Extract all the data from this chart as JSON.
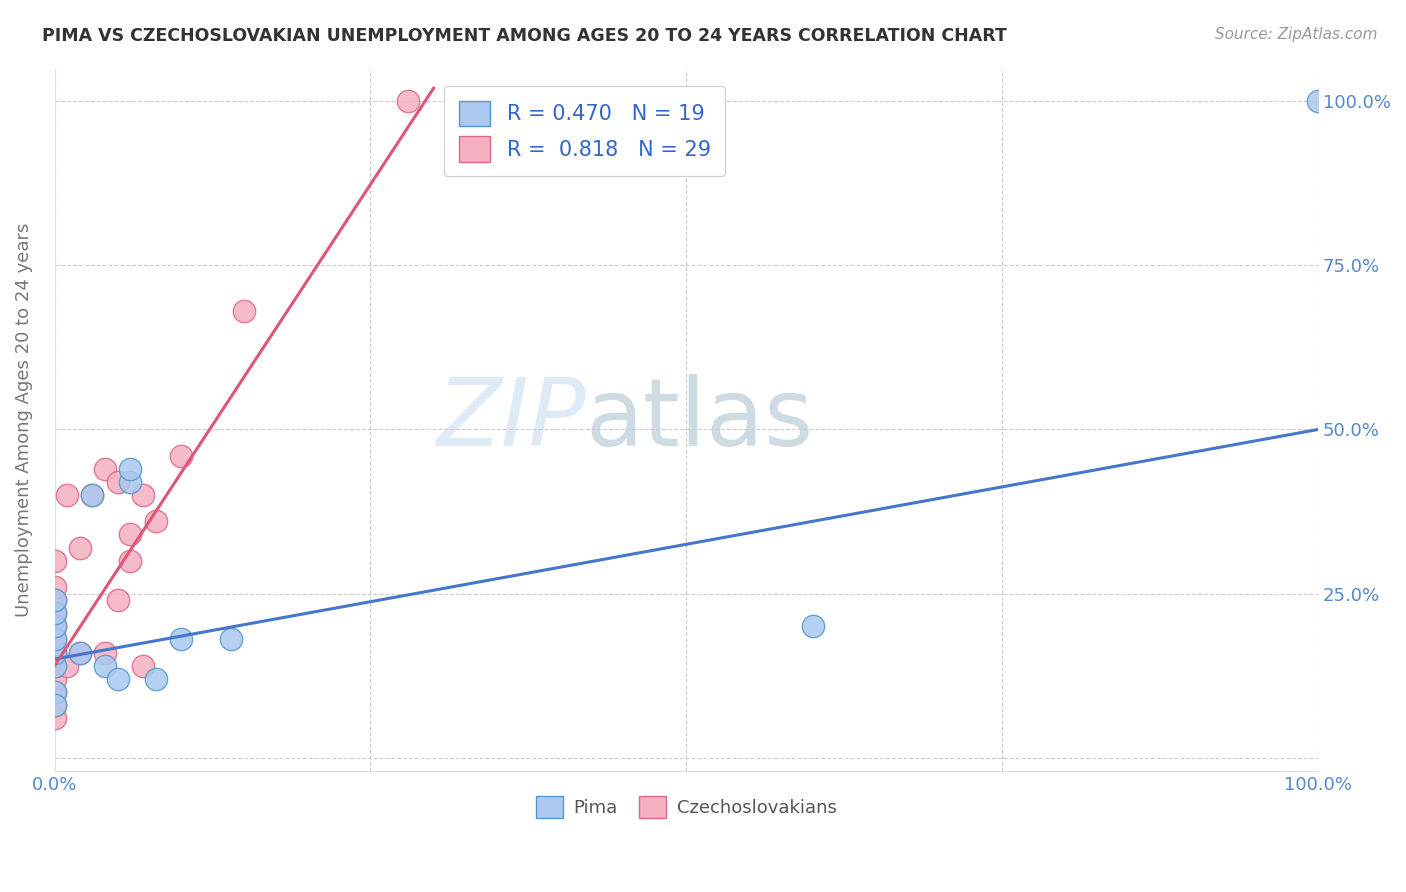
{
  "title": "PIMA VS CZECHOSLOVAKIAN UNEMPLOYMENT AMONG AGES 20 TO 24 YEARS CORRELATION CHART",
  "source": "Source: ZipAtlas.com",
  "ylabel": "Unemployment Among Ages 20 to 24 years",
  "watermark_zip": "ZIP",
  "watermark_atlas": "atlas",
  "xlim": [
    0,
    1.0
  ],
  "ylim": [
    -0.02,
    1.05
  ],
  "xticks": [
    0.0,
    0.25,
    0.5,
    0.75,
    1.0
  ],
  "xticklabels": [
    "0.0%",
    "",
    "",
    "",
    "100.0%"
  ],
  "yticks": [
    0.0,
    0.25,
    0.5,
    0.75,
    1.0
  ],
  "right_yticklabels": [
    "",
    "25.0%",
    "50.0%",
    "75.0%",
    "100.0%"
  ],
  "pima_color": "#aac8f0",
  "pima_edge_color": "#5599cc",
  "czech_color": "#f4b0c0",
  "czech_edge_color": "#dd6688",
  "pima_R": 0.47,
  "pima_N": 19,
  "czech_R": 0.818,
  "czech_N": 29,
  "pima_line_color": "#4477cc",
  "czech_line_color": "#dd5577",
  "legend_color": "#3366cc",
  "pima_points_x": [
    0.0,
    0.0,
    0.0,
    0.0,
    0.0,
    0.0,
    0.0,
    0.0,
    0.02,
    0.03,
    0.04,
    0.05,
    0.06,
    0.06,
    0.08,
    0.1,
    0.14,
    0.6,
    1.0
  ],
  "pima_points_y": [
    0.14,
    0.16,
    0.18,
    0.2,
    0.22,
    0.24,
    0.1,
    0.08,
    0.16,
    0.4,
    0.14,
    0.12,
    0.42,
    0.44,
    0.12,
    0.18,
    0.18,
    0.2,
    1.0
  ],
  "czech_points_x": [
    0.0,
    0.0,
    0.0,
    0.0,
    0.0,
    0.0,
    0.0,
    0.0,
    0.0,
    0.0,
    0.0,
    0.0,
    0.01,
    0.01,
    0.02,
    0.02,
    0.03,
    0.04,
    0.04,
    0.05,
    0.05,
    0.06,
    0.06,
    0.07,
    0.07,
    0.08,
    0.1,
    0.15,
    0.28
  ],
  "czech_points_y": [
    0.06,
    0.08,
    0.1,
    0.12,
    0.14,
    0.16,
    0.18,
    0.2,
    0.22,
    0.24,
    0.26,
    0.3,
    0.14,
    0.4,
    0.16,
    0.32,
    0.4,
    0.44,
    0.16,
    0.42,
    0.24,
    0.3,
    0.34,
    0.4,
    0.14,
    0.36,
    0.46,
    0.68,
    1.0
  ],
  "pima_line_x0": 0.0,
  "pima_line_y0": 0.15,
  "pima_line_x1": 1.0,
  "pima_line_y1": 0.5,
  "czech_line_x0": 0.0,
  "czech_line_y0": 0.14,
  "czech_line_x1": 0.3,
  "czech_line_y1": 1.02,
  "background_color": "#ffffff",
  "grid_color": "#cccccc",
  "figsize": [
    14.06,
    8.92
  ],
  "dpi": 100
}
